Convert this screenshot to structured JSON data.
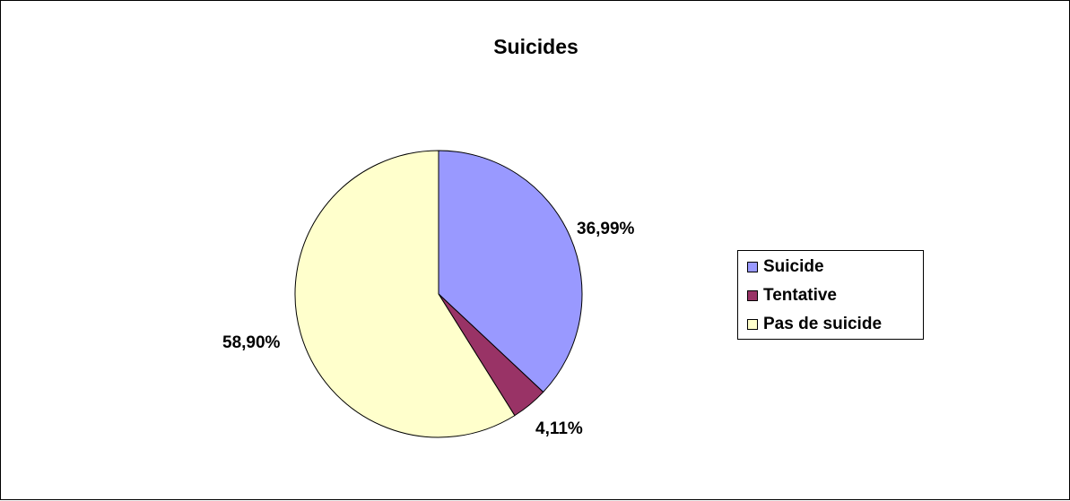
{
  "chart_data": {
    "type": "pie",
    "title": "Suicides",
    "slices": [
      {
        "name": "Suicide",
        "value": 36.99,
        "label": "36,99%",
        "color": "#9999ff"
      },
      {
        "name": "Tentative",
        "value": 4.11,
        "label": "4,11%",
        "color": "#993366"
      },
      {
        "name": "Pas de suicide",
        "value": 58.9,
        "label": "58,90%",
        "color": "#ffffcc"
      }
    ],
    "start_angle": "12 o'clock",
    "direction": "clockwise",
    "legend_position": "right"
  }
}
